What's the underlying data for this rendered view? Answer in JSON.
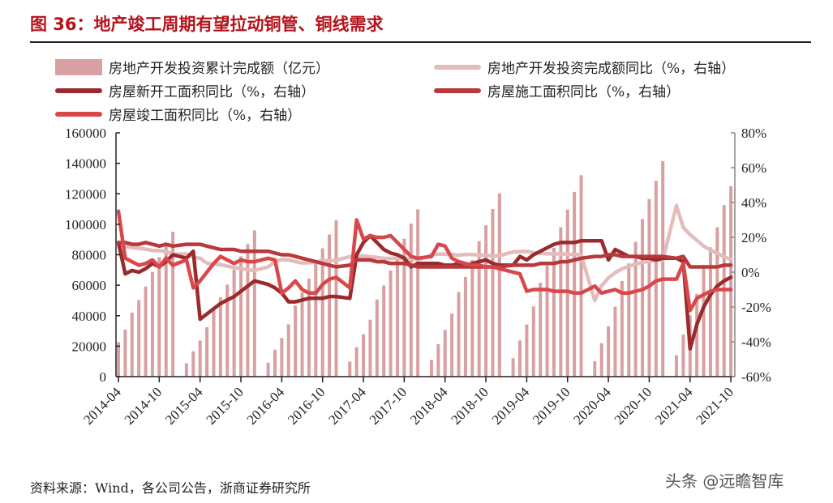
{
  "title": "图 36：地产竣工周期有望拉动铜管、铜线需求",
  "source": "资料来源：Wind，各公司公告，浙商证券研究所",
  "watermark": "头条 @远瞻智库",
  "chart_data": {
    "type": "bar+line",
    "title": "",
    "x": [
      "2014-04",
      "2014-05",
      "2014-06",
      "2014-07",
      "2014-08",
      "2014-09",
      "2014-10",
      "2014-11",
      "2014-12",
      "2015-01",
      "2015-02",
      "2015-03",
      "2015-04",
      "2015-05",
      "2015-06",
      "2015-07",
      "2015-08",
      "2015-09",
      "2015-10",
      "2015-11",
      "2015-12",
      "2016-01",
      "2016-02",
      "2016-03",
      "2016-04",
      "2016-05",
      "2016-06",
      "2016-07",
      "2016-08",
      "2016-09",
      "2016-10",
      "2016-11",
      "2016-12",
      "2017-01",
      "2017-02",
      "2017-03",
      "2017-04",
      "2017-05",
      "2017-06",
      "2017-07",
      "2017-08",
      "2017-09",
      "2017-10",
      "2017-11",
      "2017-12",
      "2018-01",
      "2018-02",
      "2018-03",
      "2018-04",
      "2018-05",
      "2018-06",
      "2018-07",
      "2018-08",
      "2018-09",
      "2018-10",
      "2018-11",
      "2018-12",
      "2019-01",
      "2019-02",
      "2019-03",
      "2019-04",
      "2019-05",
      "2019-06",
      "2019-07",
      "2019-08",
      "2019-09",
      "2019-10",
      "2019-11",
      "2019-12",
      "2020-01",
      "2020-02",
      "2020-03",
      "2020-04",
      "2020-05",
      "2020-06",
      "2020-07",
      "2020-08",
      "2020-09",
      "2020-10",
      "2020-11",
      "2020-12",
      "2021-01",
      "2021-02",
      "2021-03",
      "2021-04",
      "2021-05",
      "2021-06",
      "2021-07",
      "2021-08",
      "2021-09",
      "2021-10"
    ],
    "x_tick_labels": [
      "2014-04",
      "2014-10",
      "2015-04",
      "2015-10",
      "2016-04",
      "2016-10",
      "2017-04",
      "2017-10",
      "2018-04",
      "2018-10",
      "2019-04",
      "2019-10",
      "2020-04",
      "2020-10",
      "2021-04",
      "2021-10"
    ],
    "y_left": {
      "ylim": [
        0,
        160000
      ],
      "ticks": [
        "0",
        "20000",
        "40000",
        "60000",
        "80000",
        "100000",
        "120000",
        "140000",
        "160000"
      ]
    },
    "y_right": {
      "ylim": [
        -60,
        80
      ],
      "ticks": [
        "-60%",
        "-40%",
        "-20%",
        "0%",
        "20%",
        "40%",
        "60%",
        "80%"
      ]
    },
    "grid": false,
    "legend_placement": "top",
    "series": [
      {
        "name": "房地产开发投资累计完成额（亿元）",
        "type": "bar",
        "axis": "left",
        "color": "#d8a0a1",
        "values": [
          22603,
          30851,
          42019,
          50237,
          59139,
          68751,
          78404,
          86871,
          95036,
          null,
          8786,
          16642,
          23670,
          32450,
          43955,
          52003,
          60391,
          70160,
          78971,
          86953,
          95979,
          null,
          9140,
          17677,
          25349,
          34328,
          46631,
          55360,
          64281,
          74598,
          84214,
          93294,
          102581,
          null,
          9854,
          19292,
          27732,
          37358,
          50610,
          59761,
          69694,
          80644,
          90544,
          100387,
          109799,
          null,
          10986,
          21363,
          30592,
          41333,
          55531,
          65393,
          76519,
          88948,
          99325,
          110083,
          120264,
          null,
          12090,
          23803,
          34217,
          46075,
          61609,
          72843,
          84589,
          98008,
          109603,
          121265,
          132194,
          null,
          10115,
          21963,
          33103,
          45920,
          62780,
          74325,
          88454,
          103484,
          116556,
          128492,
          141443,
          null,
          13986,
          27576,
          40240,
          54318,
          72179,
          84895,
          98060,
          112559,
          124934
        ]
      },
      {
        "name": "房地产开发投资完成额同比（%，右轴）",
        "type": "line",
        "axis": "right",
        "color": "#e4bcbc",
        "values": [
          16.4,
          14.7,
          14.1,
          13.7,
          13.2,
          12.5,
          12.4,
          11.9,
          10.5,
          null,
          10.4,
          8.5,
          8.0,
          5.1,
          4.6,
          4.3,
          3.5,
          2.6,
          2.0,
          1.3,
          1.0,
          null,
          3.0,
          6.2,
          7.2,
          7.0,
          6.1,
          5.3,
          5.4,
          5.8,
          6.6,
          6.5,
          6.9,
          null,
          8.9,
          9.1,
          9.3,
          8.8,
          8.5,
          7.9,
          7.9,
          8.1,
          7.8,
          7.5,
          7.0,
          null,
          9.9,
          10.4,
          10.3,
          10.2,
          9.7,
          10.2,
          10.1,
          9.9,
          9.7,
          9.3,
          9.5,
          null,
          11.6,
          11.8,
          11.9,
          11.2,
          10.9,
          10.6,
          10.5,
          10.5,
          10.3,
          10.2,
          9.9,
          null,
          -16.3,
          -7.7,
          -3.3,
          -0.3,
          1.9,
          3.4,
          4.6,
          5.6,
          6.3,
          6.8,
          7.0,
          null,
          38.3,
          25.6,
          21.6,
          18.3,
          15.0,
          12.7,
          10.9,
          8.8,
          7.2
        ]
      },
      {
        "name": "房屋新开工面积同比（%，右轴）",
        "type": "line",
        "axis": "right",
        "color": "#9a2a2c",
        "values": [
          17,
          -1,
          1,
          0,
          2,
          5,
          3,
          6,
          10,
          null,
          8,
          12,
          -27,
          -24,
          -21,
          -18,
          -16,
          -14,
          -11,
          -8,
          -5,
          null,
          -7,
          -9,
          -12,
          -17,
          -17,
          -16,
          -15,
          -15,
          -15,
          -14,
          -14,
          null,
          -15,
          10,
          17,
          21,
          17,
          13,
          11,
          10,
          8,
          3,
          5,
          null,
          5,
          5,
          4,
          4,
          5,
          4,
          5,
          6,
          7,
          5,
          4,
          null,
          4,
          9,
          7,
          10,
          12,
          14,
          16,
          17,
          17,
          17,
          18,
          null,
          18,
          18,
          7,
          13,
          11,
          9,
          9,
          8,
          8,
          7,
          8,
          null,
          8,
          6,
          -44,
          -30,
          -20,
          -13,
          -8,
          -5,
          -3
        ]
      },
      {
        "name": "房屋施工面积同比（%，右轴）",
        "type": "line",
        "axis": "right",
        "color": "#b8393b",
        "values": [
          17,
          17,
          16,
          16,
          17,
          16,
          15,
          16,
          15,
          null,
          16,
          16,
          16,
          15,
          14,
          13,
          13,
          13,
          12,
          12,
          12,
          null,
          12,
          11,
          10,
          10,
          9,
          8,
          7,
          6,
          5,
          4,
          3,
          null,
          4,
          7,
          7,
          7,
          6,
          6,
          5,
          5,
          5,
          4,
          3,
          null,
          3,
          3,
          3,
          3,
          3,
          3,
          3,
          3,
          3,
          3,
          3,
          null,
          4,
          4,
          4,
          4,
          5,
          5,
          5,
          6,
          6,
          7,
          8,
          null,
          9,
          9,
          10,
          10,
          9,
          9,
          9,
          9,
          9,
          9,
          9,
          null,
          8,
          9,
          3,
          3,
          3,
          3,
          3,
          4,
          4
        ]
      },
      {
        "name": "房屋竣工面积同比（%，右轴）",
        "type": "line",
        "axis": "right",
        "color": "#d9474b",
        "values": [
          35,
          8,
          6,
          4,
          5,
          7,
          3,
          8,
          4,
          null,
          7,
          -9,
          -5,
          0,
          5,
          9,
          7,
          5,
          7,
          6,
          6,
          null,
          8,
          7,
          -12,
          -9,
          -5,
          -10,
          -12,
          -12,
          -7,
          -4,
          -3,
          null,
          -9,
          30,
          19,
          21,
          20,
          20,
          21,
          17,
          13,
          9,
          8,
          null,
          9,
          16,
          15,
          8,
          6,
          5,
          4,
          4,
          3,
          3,
          2,
          null,
          0,
          -1,
          -11,
          -10,
          -10,
          -10,
          -11,
          -11,
          -11,
          -12,
          -12,
          null,
          -8,
          -12,
          -11,
          -10,
          -12,
          -12,
          -11,
          -10,
          -8,
          -5,
          -4,
          null,
          -4,
          5,
          -22,
          -15,
          -13,
          -11,
          -10,
          -10,
          -10
        ]
      }
    ]
  }
}
